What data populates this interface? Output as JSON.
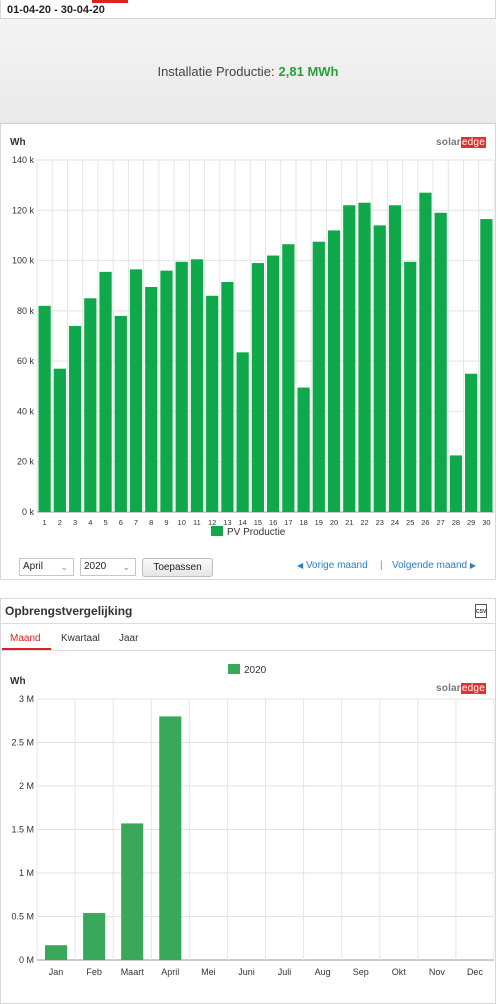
{
  "header": {
    "date_range": "01-04-20 - 30-04-20"
  },
  "kpi": {
    "label": "Installatie Productie:",
    "value": "2,81 MWh"
  },
  "logo": {
    "part1": "solar",
    "part2": "edge"
  },
  "colors": {
    "bar_green": "#0fa84b",
    "bar_green2": "#3aa85a",
    "link_blue": "#2b80c5",
    "accent_red": "#e02020"
  },
  "chart1": {
    "unit": "Wh",
    "ytick_labels": [
      "0 k",
      "20 k",
      "40 k",
      "60 k",
      "80 k",
      "100 k",
      "120 k",
      "140 k"
    ],
    "legend": "PV Productie"
  },
  "controls": {
    "month_select": "April",
    "year_select": "2020",
    "apply_button": "Toepassen",
    "prev_link": "Vorige maand",
    "separator": "|",
    "next_link": "Volgende maand"
  },
  "panel2": {
    "title": "Opbrengstvergelijking",
    "csv_icon_label": "CSV",
    "tabs": [
      "Maand",
      "Kwartaal",
      "Jaar"
    ],
    "active_tab": "Maand"
  },
  "chart2": {
    "unit": "Wh",
    "legend": "2020",
    "ytick_labels": [
      "0 M",
      "0.5 M",
      "1 M",
      "1.5 M",
      "2 M",
      "2.5 M",
      "3 M"
    ]
  },
  "chart_data": [
    {
      "type": "bar",
      "ylabel": "Wh",
      "ylim": [
        0,
        140000
      ],
      "grid": true,
      "legend_position": "bottom",
      "categories": [
        "1",
        "2",
        "3",
        "4",
        "5",
        "6",
        "7",
        "8",
        "9",
        "10",
        "11",
        "12",
        "13",
        "14",
        "15",
        "16",
        "17",
        "18",
        "19",
        "20",
        "21",
        "22",
        "23",
        "24",
        "25",
        "26",
        "27",
        "28",
        "29",
        "30"
      ],
      "series": [
        {
          "name": "PV Productie",
          "values": [
            82000,
            57000,
            74000,
            85000,
            95500,
            78000,
            96500,
            89500,
            96000,
            99500,
            100500,
            86000,
            91500,
            63500,
            99000,
            102000,
            106500,
            49500,
            107500,
            112000,
            122000,
            123000,
            114000,
            122000,
            99500,
            127000,
            119000,
            22500,
            55000,
            116500
          ]
        }
      ]
    },
    {
      "type": "bar",
      "ylabel": "Wh",
      "ylim": [
        0,
        3000000
      ],
      "grid": true,
      "legend_position": "top",
      "categories": [
        "Jan",
        "Feb",
        "Maart",
        "April",
        "Mei",
        "Juni",
        "Juli",
        "Aug",
        "Sep",
        "Okt",
        "Nov",
        "Dec"
      ],
      "series": [
        {
          "name": "2020",
          "values": [
            170000,
            540000,
            1570000,
            2800000,
            null,
            null,
            null,
            null,
            null,
            null,
            null,
            null
          ]
        }
      ]
    }
  ]
}
